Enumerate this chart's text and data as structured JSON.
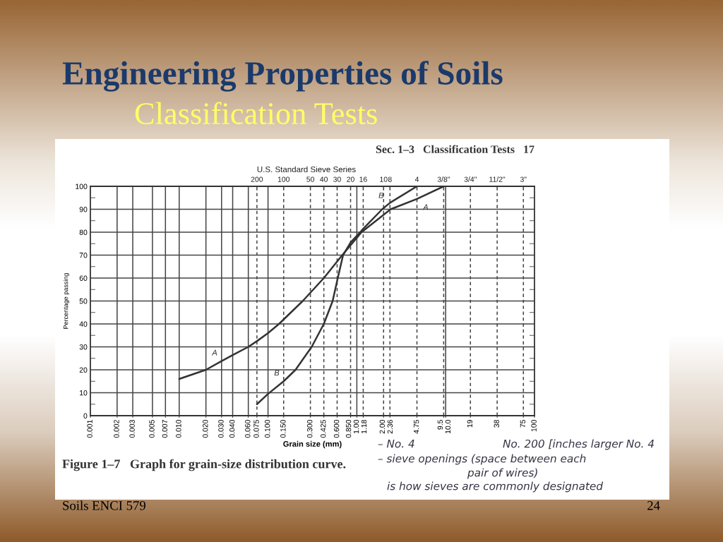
{
  "chart_data": {
    "type": "line",
    "title": "Engineering Properties of Soils",
    "subtitle": "Classification Tests",
    "xlabel": "Grain size (mm)",
    "ylabel": "Percentage passing",
    "log": "x",
    "xlim": [
      0.001,
      100
    ],
    "ylim": [
      0,
      100
    ],
    "xticks": [
      0.001,
      0.002,
      0.003,
      0.005,
      0.007,
      {
        "value": 0.01,
        "label": "0.010"
      },
      {
        "value": 0.02,
        "label": "0.020"
      },
      {
        "value": 0.03,
        "label": "0.030"
      },
      {
        "value": 0.04,
        "label": "0.040"
      },
      {
        "value": 0.06,
        "label": "0.060"
      },
      0.075,
      {
        "value": 0.1,
        "label": "0.100"
      },
      {
        "value": 0.15,
        "label": "0.150"
      },
      {
        "value": 0.3,
        "label": "0.300"
      },
      0.425,
      {
        "value": 0.6,
        "label": "0.600"
      },
      {
        "value": 0.85,
        "label": "0.850"
      },
      {
        "value": 1,
        "label": "1.00"
      },
      1.18,
      {
        "value": 2,
        "label": "2.00"
      },
      2.36,
      4.75,
      9.5,
      {
        "value": 10,
        "label": "10.0"
      },
      19,
      38,
      75,
      100
    ],
    "yticks": [
      0,
      10,
      20,
      30,
      40,
      50,
      60,
      70,
      80,
      90,
      100
    ],
    "grid": "y",
    "line_style": "solid",
    "ref_lines": [
      {
        "axis": "x",
        "value": 0.002
      },
      {
        "axis": "x",
        "value": 0.003
      },
      {
        "axis": "x",
        "value": 0.005
      },
      {
        "axis": "x",
        "value": 0.007
      },
      {
        "axis": "x",
        "value": 0.01
      },
      {
        "axis": "x",
        "value": 0.02
      },
      {
        "axis": "x",
        "value": 0.03
      },
      {
        "axis": "x",
        "value": 0.04
      },
      {
        "axis": "x",
        "value": 0.06
      },
      {
        "axis": "x",
        "value": 0.075,
        "line_style": "dashed"
      },
      {
        "axis": "x",
        "value": 0.1
      },
      {
        "axis": "x",
        "value": 0.15,
        "line_style": "dashed"
      },
      {
        "axis": "x",
        "value": 0.3,
        "line_style": "dashed"
      },
      {
        "axis": "x",
        "value": 0.425,
        "line_style": "dashed"
      },
      {
        "axis": "x",
        "value": 0.6,
        "line_style": "dashed"
      },
      {
        "axis": "x",
        "value": 0.85,
        "line_style": "dashed"
      },
      {
        "axis": "x",
        "value": 1
      },
      {
        "axis": "x",
        "value": 1.18,
        "line_style": "dashed"
      },
      {
        "axis": "x",
        "value": 2,
        "line_style": "dashed"
      },
      {
        "axis": "x",
        "value": 2.36,
        "line_style": "dashed"
      },
      {
        "axis": "x",
        "value": 4.75,
        "line_style": "dashed"
      },
      {
        "axis": "x",
        "value": 9.5,
        "line_style": "dashed"
      },
      {
        "axis": "x",
        "value": 10
      },
      {
        "axis": "x",
        "value": 19,
        "line_style": "dashed"
      },
      {
        "axis": "x",
        "value": 38,
        "line_style": "dashed"
      },
      {
        "axis": "x",
        "value": 75,
        "line_style": "dashed"
      }
    ],
    "series": [
      {
        "name": "A",
        "color": "#333333",
        "x": [
          0.01,
          0.02,
          0.03,
          0.04,
          0.06,
          0.075,
          0.1,
          0.133,
          0.246,
          0.425,
          0.685,
          1.13,
          2.4,
          4.75,
          9.5
        ],
        "values": [
          16,
          20,
          23.8,
          26.4,
          30,
          32.5,
          36,
          40,
          50,
          60,
          70,
          80,
          90,
          94.5,
          100
        ]
      },
      {
        "name": "B",
        "color": "#333333",
        "x": [
          0.075,
          0.1,
          0.15,
          0.204,
          0.31,
          0.425,
          0.534,
          0.61,
          0.7,
          0.85,
          1.09,
          1.18,
          1.93,
          2.36,
          4.75
        ],
        "values": [
          5,
          9.5,
          15,
          20,
          30,
          40,
          50,
          60,
          70,
          75.5,
          80,
          81.5,
          90,
          92.8,
          100
        ]
      }
    ],
    "annotations": [
      "Sec. 1–3   Classification Tests   17",
      "U.S. Standard Sieve Series",
      {
        "text": "200",
        "x": 0.075,
        "y": 100
      },
      {
        "text": "100",
        "x": 0.15,
        "y": 100
      },
      {
        "text": "50",
        "x": 0.3,
        "y": 100
      },
      {
        "text": "40",
        "x": 0.425,
        "y": 100
      },
      {
        "text": "30",
        "x": 0.6,
        "y": 100
      },
      {
        "text": "20",
        "x": 0.85,
        "y": 100
      },
      {
        "text": "16",
        "x": 1.18,
        "y": 100
      },
      {
        "text": "10",
        "x": 2,
        "y": 100
      },
      {
        "text": "8",
        "x": 2.36,
        "y": 100
      },
      {
        "text": "4",
        "x": 4.75,
        "y": 100
      },
      {
        "text": "3/8\"",
        "x": 9.5,
        "y": 100
      },
      {
        "text": "3/4\"",
        "x": 19,
        "y": 100
      },
      {
        "text": "11/2\"",
        "x": 38,
        "y": 100
      },
      {
        "text": "3\"",
        "x": 75,
        "y": 100
      },
      "Figure 1–7   Graph for grain-size distribution curve.",
      "– No. 4",
      "No. 200 [inches larger No. 4",
      "– sieve openings (space between each",
      "pair of wires)",
      "is how sieves are commonly designated",
      "Soils ENCI 579",
      "24"
    ]
  }
}
